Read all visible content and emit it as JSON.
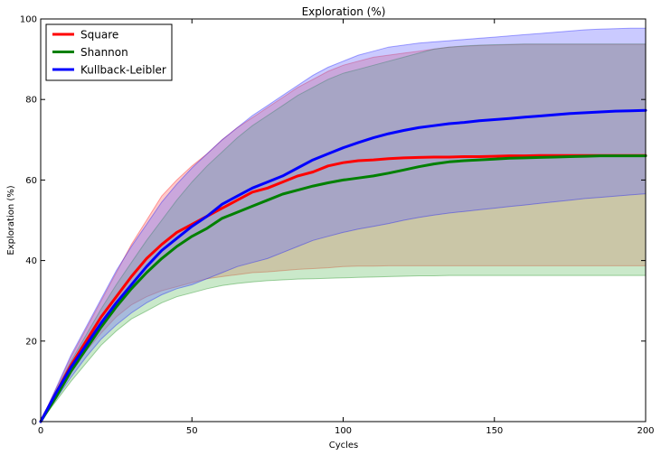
{
  "chart_data": {
    "type": "line",
    "title": "Exploration (%)",
    "xlabel": "Cycles",
    "ylabel": "Exploration (%)",
    "xlim": [
      0,
      200
    ],
    "ylim": [
      0,
      100
    ],
    "xticks": [
      0,
      50,
      100,
      150,
      200
    ],
    "yticks": [
      0,
      20,
      40,
      60,
      80,
      100
    ],
    "grid": false,
    "legend_position": "top-left",
    "x": [
      0,
      5,
      10,
      15,
      20,
      25,
      30,
      35,
      40,
      45,
      50,
      55,
      60,
      65,
      70,
      75,
      80,
      85,
      90,
      95,
      100,
      105,
      110,
      115,
      120,
      125,
      130,
      135,
      140,
      145,
      150,
      155,
      160,
      165,
      170,
      175,
      180,
      185,
      190,
      195,
      200
    ],
    "series": [
      {
        "name": "Square",
        "color": "#ff0000",
        "fill_color": "#ff6666",
        "mean": [
          0,
          7,
          14,
          20,
          26,
          31,
          36,
          40.5,
          44,
          47,
          49,
          51,
          53,
          55,
          57,
          58,
          59.5,
          61,
          62,
          63.5,
          64.3,
          64.8,
          65,
          65.3,
          65.5,
          65.6,
          65.7,
          65.7,
          65.8,
          65.8,
          65.9,
          66,
          66,
          66.1,
          66.1,
          66.1,
          66.1,
          66.1,
          66.1,
          66.1,
          66.1
        ],
        "upper": [
          0,
          8,
          16,
          23,
          30,
          37,
          44,
          50,
          56,
          60,
          63.5,
          66.5,
          70,
          73,
          75.5,
          78,
          80.5,
          83,
          85,
          87,
          88.5,
          89.5,
          90.5,
          91,
          91.5,
          92,
          92.5,
          93,
          93.2,
          93.4,
          93.5,
          93.6,
          93.7,
          93.7,
          93.7,
          93.7,
          93.7,
          93.7,
          93.7,
          93.7,
          93.7
        ],
        "lower": [
          0,
          6,
          12,
          17.5,
          22,
          26,
          29,
          31,
          32.5,
          33.5,
          34.5,
          35.5,
          36,
          36.5,
          37,
          37.2,
          37.5,
          37.8,
          38,
          38.2,
          38.5,
          38.6,
          38.6,
          38.7,
          38.7,
          38.7,
          38.7,
          38.7,
          38.7,
          38.7,
          38.7,
          38.7,
          38.7,
          38.7,
          38.7,
          38.7,
          38.7,
          38.7,
          38.7,
          38.7,
          38.7
        ]
      },
      {
        "name": "Shannon",
        "color": "#008000",
        "fill_color": "#66c066",
        "mean": [
          0,
          6,
          12.5,
          18,
          23.5,
          28.5,
          33,
          37,
          40.5,
          43.5,
          46,
          48,
          50.5,
          52,
          53.5,
          55,
          56.5,
          57.5,
          58.5,
          59.3,
          60,
          60.5,
          61,
          61.7,
          62.5,
          63.3,
          64,
          64.5,
          64.8,
          65,
          65.2,
          65.4,
          65.5,
          65.6,
          65.7,
          65.8,
          65.9,
          66,
          66,
          66,
          66
        ],
        "upper": [
          0,
          7.5,
          15,
          21.5,
          28,
          34,
          39.5,
          45,
          50,
          55,
          59.5,
          63.5,
          67,
          70.5,
          73.5,
          76,
          78.5,
          81,
          83,
          85,
          86.5,
          87.5,
          88.5,
          89.5,
          90.5,
          91.5,
          92.5,
          93,
          93.3,
          93.5,
          93.6,
          93.7,
          93.8,
          93.8,
          93.8,
          93.8,
          93.8,
          93.8,
          93.8,
          93.8,
          93.8
        ],
        "lower": [
          0,
          5,
          10,
          14.5,
          19,
          22.5,
          25.5,
          27.5,
          29.5,
          31,
          32,
          33,
          33.8,
          34.3,
          34.7,
          35,
          35.2,
          35.4,
          35.5,
          35.6,
          35.7,
          35.8,
          35.9,
          36,
          36.1,
          36.2,
          36.2,
          36.3,
          36.3,
          36.3,
          36.3,
          36.3,
          36.3,
          36.3,
          36.3,
          36.3,
          36.3,
          36.3,
          36.3,
          36.3,
          36.3
        ]
      },
      {
        "name": "Kullback-Leibler",
        "color": "#0000ff",
        "fill_color": "#6666ff",
        "mean": [
          0,
          7,
          13.5,
          19,
          24.5,
          29.5,
          34,
          38.5,
          42.5,
          45.5,
          48.5,
          51,
          54,
          56,
          58,
          59.5,
          61,
          63,
          65,
          66.5,
          68,
          69.3,
          70.5,
          71.5,
          72.3,
          73,
          73.5,
          74,
          74.3,
          74.7,
          75,
          75.3,
          75.6,
          75.9,
          76.2,
          76.5,
          76.7,
          76.9,
          77.1,
          77.2,
          77.3
        ],
        "upper": [
          0,
          8.2,
          16.5,
          23.5,
          30.5,
          37.5,
          43.5,
          49,
          54.5,
          59,
          63,
          66.5,
          70,
          73,
          76,
          78.5,
          81,
          83.5,
          86,
          88,
          89.5,
          91,
          92,
          93,
          93.5,
          94,
          94.3,
          94.6,
          94.9,
          95.2,
          95.5,
          95.8,
          96.1,
          96.4,
          96.7,
          97,
          97.3,
          97.5,
          97.6,
          97.7,
          97.7
        ],
        "lower": [
          0,
          5.5,
          11,
          16,
          20.5,
          24,
          27,
          29.5,
          31.5,
          33,
          34,
          35.5,
          37,
          38.5,
          39.5,
          40.5,
          42,
          43.5,
          45,
          46,
          47,
          47.8,
          48.5,
          49.2,
          50,
          50.7,
          51.3,
          51.8,
          52.2,
          52.6,
          53,
          53.4,
          53.8,
          54.2,
          54.6,
          55,
          55.4,
          55.7,
          56,
          56.3,
          56.6
        ]
      }
    ]
  }
}
